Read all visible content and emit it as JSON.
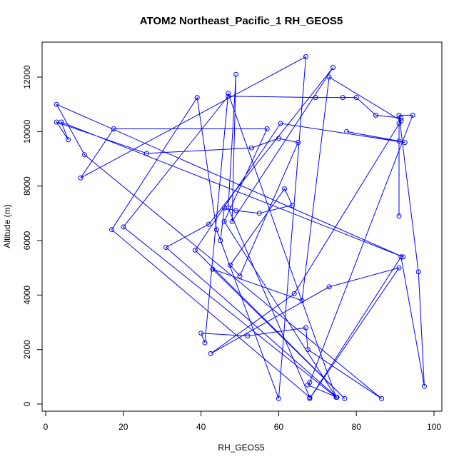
{
  "chart_data": {
    "type": "line",
    "title": "ATOM2 Northeast_Pacific_1 RH_GEOS5",
    "xlabel": "RH_GEOS5",
    "ylabel": "Altitude (m)",
    "xlim": [
      0,
      100
    ],
    "ylim": [
      0,
      12000
    ],
    "xticks": [
      0,
      20,
      40,
      60,
      80,
      100
    ],
    "yticks": [
      0,
      2000,
      4000,
      6000,
      8000,
      10000,
      12000
    ],
    "grid": false,
    "legend": "none",
    "series_color": "#0000ff",
    "points": [
      [
        74.8,
        250
      ],
      [
        46,
        6700
      ],
      [
        57,
        10100
      ],
      [
        17.5,
        10100
      ],
      [
        9,
        8300
      ],
      [
        67,
        12750
      ],
      [
        60,
        200
      ],
      [
        44,
        6400
      ],
      [
        39,
        11250
      ],
      [
        17,
        6400
      ],
      [
        68,
        250
      ],
      [
        47,
        7200
      ],
      [
        49,
        12100
      ],
      [
        48,
        6700
      ],
      [
        74,
        12350
      ],
      [
        42,
        6600
      ],
      [
        31,
        5750
      ],
      [
        75,
        250
      ],
      [
        67.5,
        700
      ],
      [
        68,
        800
      ],
      [
        94.5,
        10600
      ],
      [
        91,
        10600
      ],
      [
        96,
        4850
      ],
      [
        97.5,
        650
      ],
      [
        91.5,
        5400
      ],
      [
        68,
        200
      ],
      [
        91,
        5000
      ],
      [
        73,
        4300
      ],
      [
        42.5,
        1850
      ],
      [
        64,
        4050
      ],
      [
        91.5,
        10400
      ],
      [
        73,
        12000
      ],
      [
        66,
        3800
      ],
      [
        43,
        4950
      ],
      [
        77,
        200
      ],
      [
        38.5,
        5650
      ],
      [
        60.5,
        10300
      ],
      [
        92.5,
        9600
      ],
      [
        77.5,
        10000
      ],
      [
        91,
        9650
      ],
      [
        91,
        6900
      ],
      [
        91,
        10300
      ],
      [
        91.5,
        10500
      ],
      [
        85,
        10600
      ],
      [
        80,
        11250
      ],
      [
        76.5,
        11250
      ],
      [
        69.5,
        11250
      ],
      [
        47,
        11300
      ],
      [
        20,
        6500
      ],
      [
        74.8,
        250
      ],
      [
        47,
        11400
      ],
      [
        41,
        2250
      ],
      [
        40,
        2600
      ],
      [
        52,
        2500
      ],
      [
        67,
        2800
      ],
      [
        67.5,
        2000
      ],
      [
        86.5,
        200
      ],
      [
        10,
        9150
      ],
      [
        2.8,
        11000
      ],
      [
        92,
        5400
      ],
      [
        4,
        10350
      ],
      [
        5.8,
        9700
      ],
      [
        2.8,
        10350
      ],
      [
        26,
        9200
      ],
      [
        53,
        9400
      ],
      [
        60,
        9750
      ],
      [
        65,
        9600
      ],
      [
        50,
        4700
      ],
      [
        47.5,
        5100
      ],
      [
        61.5,
        7900
      ],
      [
        63.5,
        7300
      ],
      [
        55,
        7000
      ],
      [
        49,
        7100
      ],
      [
        46,
        7200
      ],
      [
        45,
        6000
      ]
    ]
  }
}
